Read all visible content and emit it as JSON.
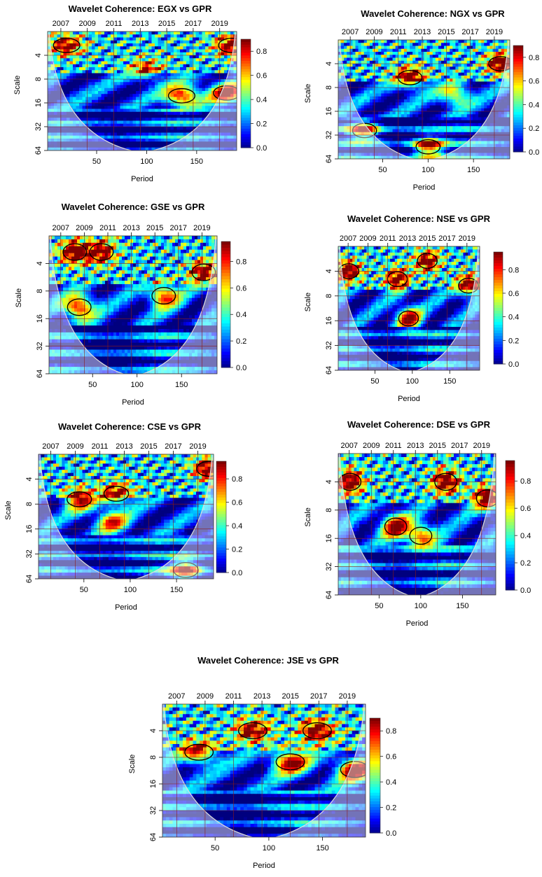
{
  "colors": {
    "scale": [
      "#00007f",
      "#0000ff",
      "#0080ff",
      "#00ffff",
      "#80ff80",
      "#ffff00",
      "#ff8000",
      "#ff0000",
      "#7f0000"
    ],
    "grid": "#8b1a1a",
    "coi": "#dcdcdc",
    "contour": "#000000"
  },
  "chart_data": [
    {
      "type": "heatmap",
      "title": "Wavelet Coherence: EGX vs GPR",
      "xlabel": "Period",
      "ylabel": "Scale",
      "x_ticks": [
        50,
        100,
        150
      ],
      "y_ticks": [
        4,
        8,
        16,
        32,
        64
      ],
      "top_ticks": [
        "2007",
        "2009",
        "2011",
        "2013",
        "2015",
        "2017",
        "2019"
      ],
      "xlim": [
        1,
        190
      ],
      "ylim": [
        2,
        64
      ],
      "y_scale": "log2",
      "colorbar_ticks": [
        0.0,
        0.2,
        0.4,
        0.6,
        0.8
      ],
      "colorbar_labels": [
        "0.0",
        "0.2",
        "0.4",
        "0.6",
        "0.8"
      ],
      "colorbar_range": [
        0,
        0.9
      ],
      "regions": [
        {
          "x": 135,
          "scale": 13,
          "coherence": 0.85
        },
        {
          "x": 180,
          "scale": 12,
          "coherence": 0.8
        },
        {
          "x": 20,
          "scale": 3,
          "coherence": 0.7
        },
        {
          "x": 185,
          "scale": 3,
          "coherence": 0.75
        },
        {
          "x": 100,
          "scale": 6,
          "coherence": 0.55
        }
      ]
    },
    {
      "type": "heatmap",
      "title": "Wavelet Coherence: NGX vs GPR",
      "xlabel": "Period",
      "ylabel": "Scale",
      "x_ticks": [
        50,
        100,
        150
      ],
      "y_ticks": [
        4,
        8,
        16,
        32,
        64
      ],
      "top_ticks": [
        "2007",
        "2009",
        "2011",
        "2013",
        "2015",
        "2017",
        "2019"
      ],
      "xlim": [
        1,
        190
      ],
      "ylim": [
        2,
        64
      ],
      "y_scale": "log2",
      "colorbar_ticks": [
        0.0,
        0.2,
        0.4,
        0.6,
        0.8
      ],
      "colorbar_labels": [
        "0.0",
        "0.2",
        "0.4",
        "0.6",
        "0.8"
      ],
      "colorbar_range": [
        0,
        0.9
      ],
      "regions": [
        {
          "x": 80,
          "scale": 6,
          "coherence": 0.8
        },
        {
          "x": 100,
          "scale": 45,
          "coherence": 0.85
        },
        {
          "x": 30,
          "scale": 28,
          "coherence": 0.75
        },
        {
          "x": 180,
          "scale": 4,
          "coherence": 0.8
        },
        {
          "x": 130,
          "scale": 10,
          "coherence": 0.6
        }
      ]
    },
    {
      "type": "heatmap",
      "title": "Wavelet Coherence: GSE vs GPR",
      "xlabel": "Period",
      "ylabel": "Scale",
      "x_ticks": [
        50,
        100,
        150
      ],
      "y_ticks": [
        4,
        8,
        16,
        32,
        64
      ],
      "top_ticks": [
        "2007",
        "2009",
        "2011",
        "2013",
        "2015",
        "2017",
        "2019"
      ],
      "xlim": [
        1,
        190
      ],
      "ylim": [
        2,
        64
      ],
      "y_scale": "log2",
      "colorbar_ticks": [
        0.0,
        0.2,
        0.4,
        0.6,
        0.8
      ],
      "colorbar_labels": [
        "0.0",
        "0.2",
        "0.4",
        "0.6",
        "0.8"
      ],
      "colorbar_range": [
        0,
        0.95
      ],
      "regions": [
        {
          "x": 35,
          "scale": 12,
          "coherence": 0.85
        },
        {
          "x": 30,
          "scale": 3,
          "coherence": 0.8
        },
        {
          "x": 130,
          "scale": 9,
          "coherence": 0.75
        },
        {
          "x": 175,
          "scale": 5,
          "coherence": 0.7
        },
        {
          "x": 60,
          "scale": 3,
          "coherence": 0.7
        }
      ]
    },
    {
      "type": "heatmap",
      "title": "Wavelet Coherence: NSE vs GPR",
      "xlabel": "Period",
      "ylabel": "Scale",
      "x_ticks": [
        50,
        100,
        150
      ],
      "y_ticks": [
        4,
        8,
        16,
        32,
        64
      ],
      "top_ticks": [
        "2007",
        "2009",
        "2011",
        "2013",
        "2015",
        "2017",
        "2019"
      ],
      "xlim": [
        1,
        190
      ],
      "ylim": [
        2,
        64
      ],
      "y_scale": "log2",
      "colorbar_ticks": [
        0.0,
        0.2,
        0.4,
        0.6,
        0.8
      ],
      "colorbar_labels": [
        "0.0",
        "0.2",
        "0.4",
        "0.6",
        "0.8"
      ],
      "colorbar_range": [
        0,
        0.95
      ],
      "regions": [
        {
          "x": 95,
          "scale": 15,
          "coherence": 0.8
        },
        {
          "x": 15,
          "scale": 4,
          "coherence": 0.8
        },
        {
          "x": 80,
          "scale": 5,
          "coherence": 0.75
        },
        {
          "x": 175,
          "scale": 6,
          "coherence": 0.8
        },
        {
          "x": 120,
          "scale": 3,
          "coherence": 0.75
        }
      ]
    },
    {
      "type": "heatmap",
      "title": "Wavelet Coherence: CSE vs GPR",
      "xlabel": "Period",
      "ylabel": "Scale",
      "x_ticks": [
        50,
        100,
        150
      ],
      "y_ticks": [
        4,
        8,
        16,
        32,
        64
      ],
      "top_ticks": [
        "2007",
        "2009",
        "2011",
        "2013",
        "2015",
        "2017",
        "2019"
      ],
      "xlim": [
        1,
        190
      ],
      "ylim": [
        2,
        64
      ],
      "y_scale": "log2",
      "colorbar_ticks": [
        0.0,
        0.2,
        0.4,
        0.6,
        0.8
      ],
      "colorbar_labels": [
        "0.0",
        "0.2",
        "0.4",
        "0.6",
        "0.8"
      ],
      "colorbar_range": [
        0,
        0.95
      ],
      "regions": [
        {
          "x": 160,
          "scale": 50,
          "coherence": 0.75
        },
        {
          "x": 45,
          "scale": 7,
          "coherence": 0.75
        },
        {
          "x": 85,
          "scale": 6,
          "coherence": 0.7
        },
        {
          "x": 185,
          "scale": 3,
          "coherence": 0.8
        },
        {
          "x": 80,
          "scale": 13,
          "coherence": 0.65
        }
      ]
    },
    {
      "type": "heatmap",
      "title": "Wavelet Coherence: DSE vs GPR",
      "xlabel": "Period",
      "ylabel": "Scale",
      "x_ticks": [
        50,
        100,
        150
      ],
      "y_ticks": [
        4,
        8,
        16,
        32,
        64
      ],
      "top_ticks": [
        "2007",
        "2009",
        "2011",
        "2013",
        "2015",
        "2017",
        "2019"
      ],
      "xlim": [
        1,
        190
      ],
      "ylim": [
        2,
        64
      ],
      "y_scale": "log2",
      "colorbar_ticks": [
        0.0,
        0.2,
        0.4,
        0.6,
        0.8
      ],
      "colorbar_labels": [
        "0.0",
        "0.2",
        "0.4",
        "0.6",
        "0.8"
      ],
      "colorbar_range": [
        0,
        0.95
      ],
      "regions": [
        {
          "x": 70,
          "scale": 12,
          "coherence": 0.8
        },
        {
          "x": 15,
          "scale": 4,
          "coherence": 0.8
        },
        {
          "x": 130,
          "scale": 4,
          "coherence": 0.8
        },
        {
          "x": 180,
          "scale": 6,
          "coherence": 0.85
        },
        {
          "x": 100,
          "scale": 15,
          "coherence": 0.7
        }
      ]
    },
    {
      "type": "heatmap",
      "title": "Wavelet Coherence: JSE vs GPR",
      "xlabel": "Period",
      "ylabel": "Scale",
      "x_ticks": [
        50,
        100,
        150
      ],
      "y_ticks": [
        4,
        8,
        16,
        32,
        64
      ],
      "top_ticks": [
        "2007",
        "2009",
        "2011",
        "2013",
        "2015",
        "2017",
        "2019"
      ],
      "xlim": [
        1,
        190
      ],
      "ylim": [
        2,
        64
      ],
      "y_scale": "log2",
      "colorbar_ticks": [
        0.0,
        0.2,
        0.4,
        0.6,
        0.8
      ],
      "colorbar_labels": [
        "0.0",
        "0.2",
        "0.4",
        "0.6",
        "0.8"
      ],
      "colorbar_range": [
        0,
        0.9
      ],
      "regions": [
        {
          "x": 120,
          "scale": 9,
          "coherence": 0.85
        },
        {
          "x": 180,
          "scale": 11,
          "coherence": 0.85
        },
        {
          "x": 35,
          "scale": 7,
          "coherence": 0.75
        },
        {
          "x": 145,
          "scale": 4,
          "coherence": 0.75
        },
        {
          "x": 85,
          "scale": 4,
          "coherence": 0.7
        }
      ]
    }
  ]
}
